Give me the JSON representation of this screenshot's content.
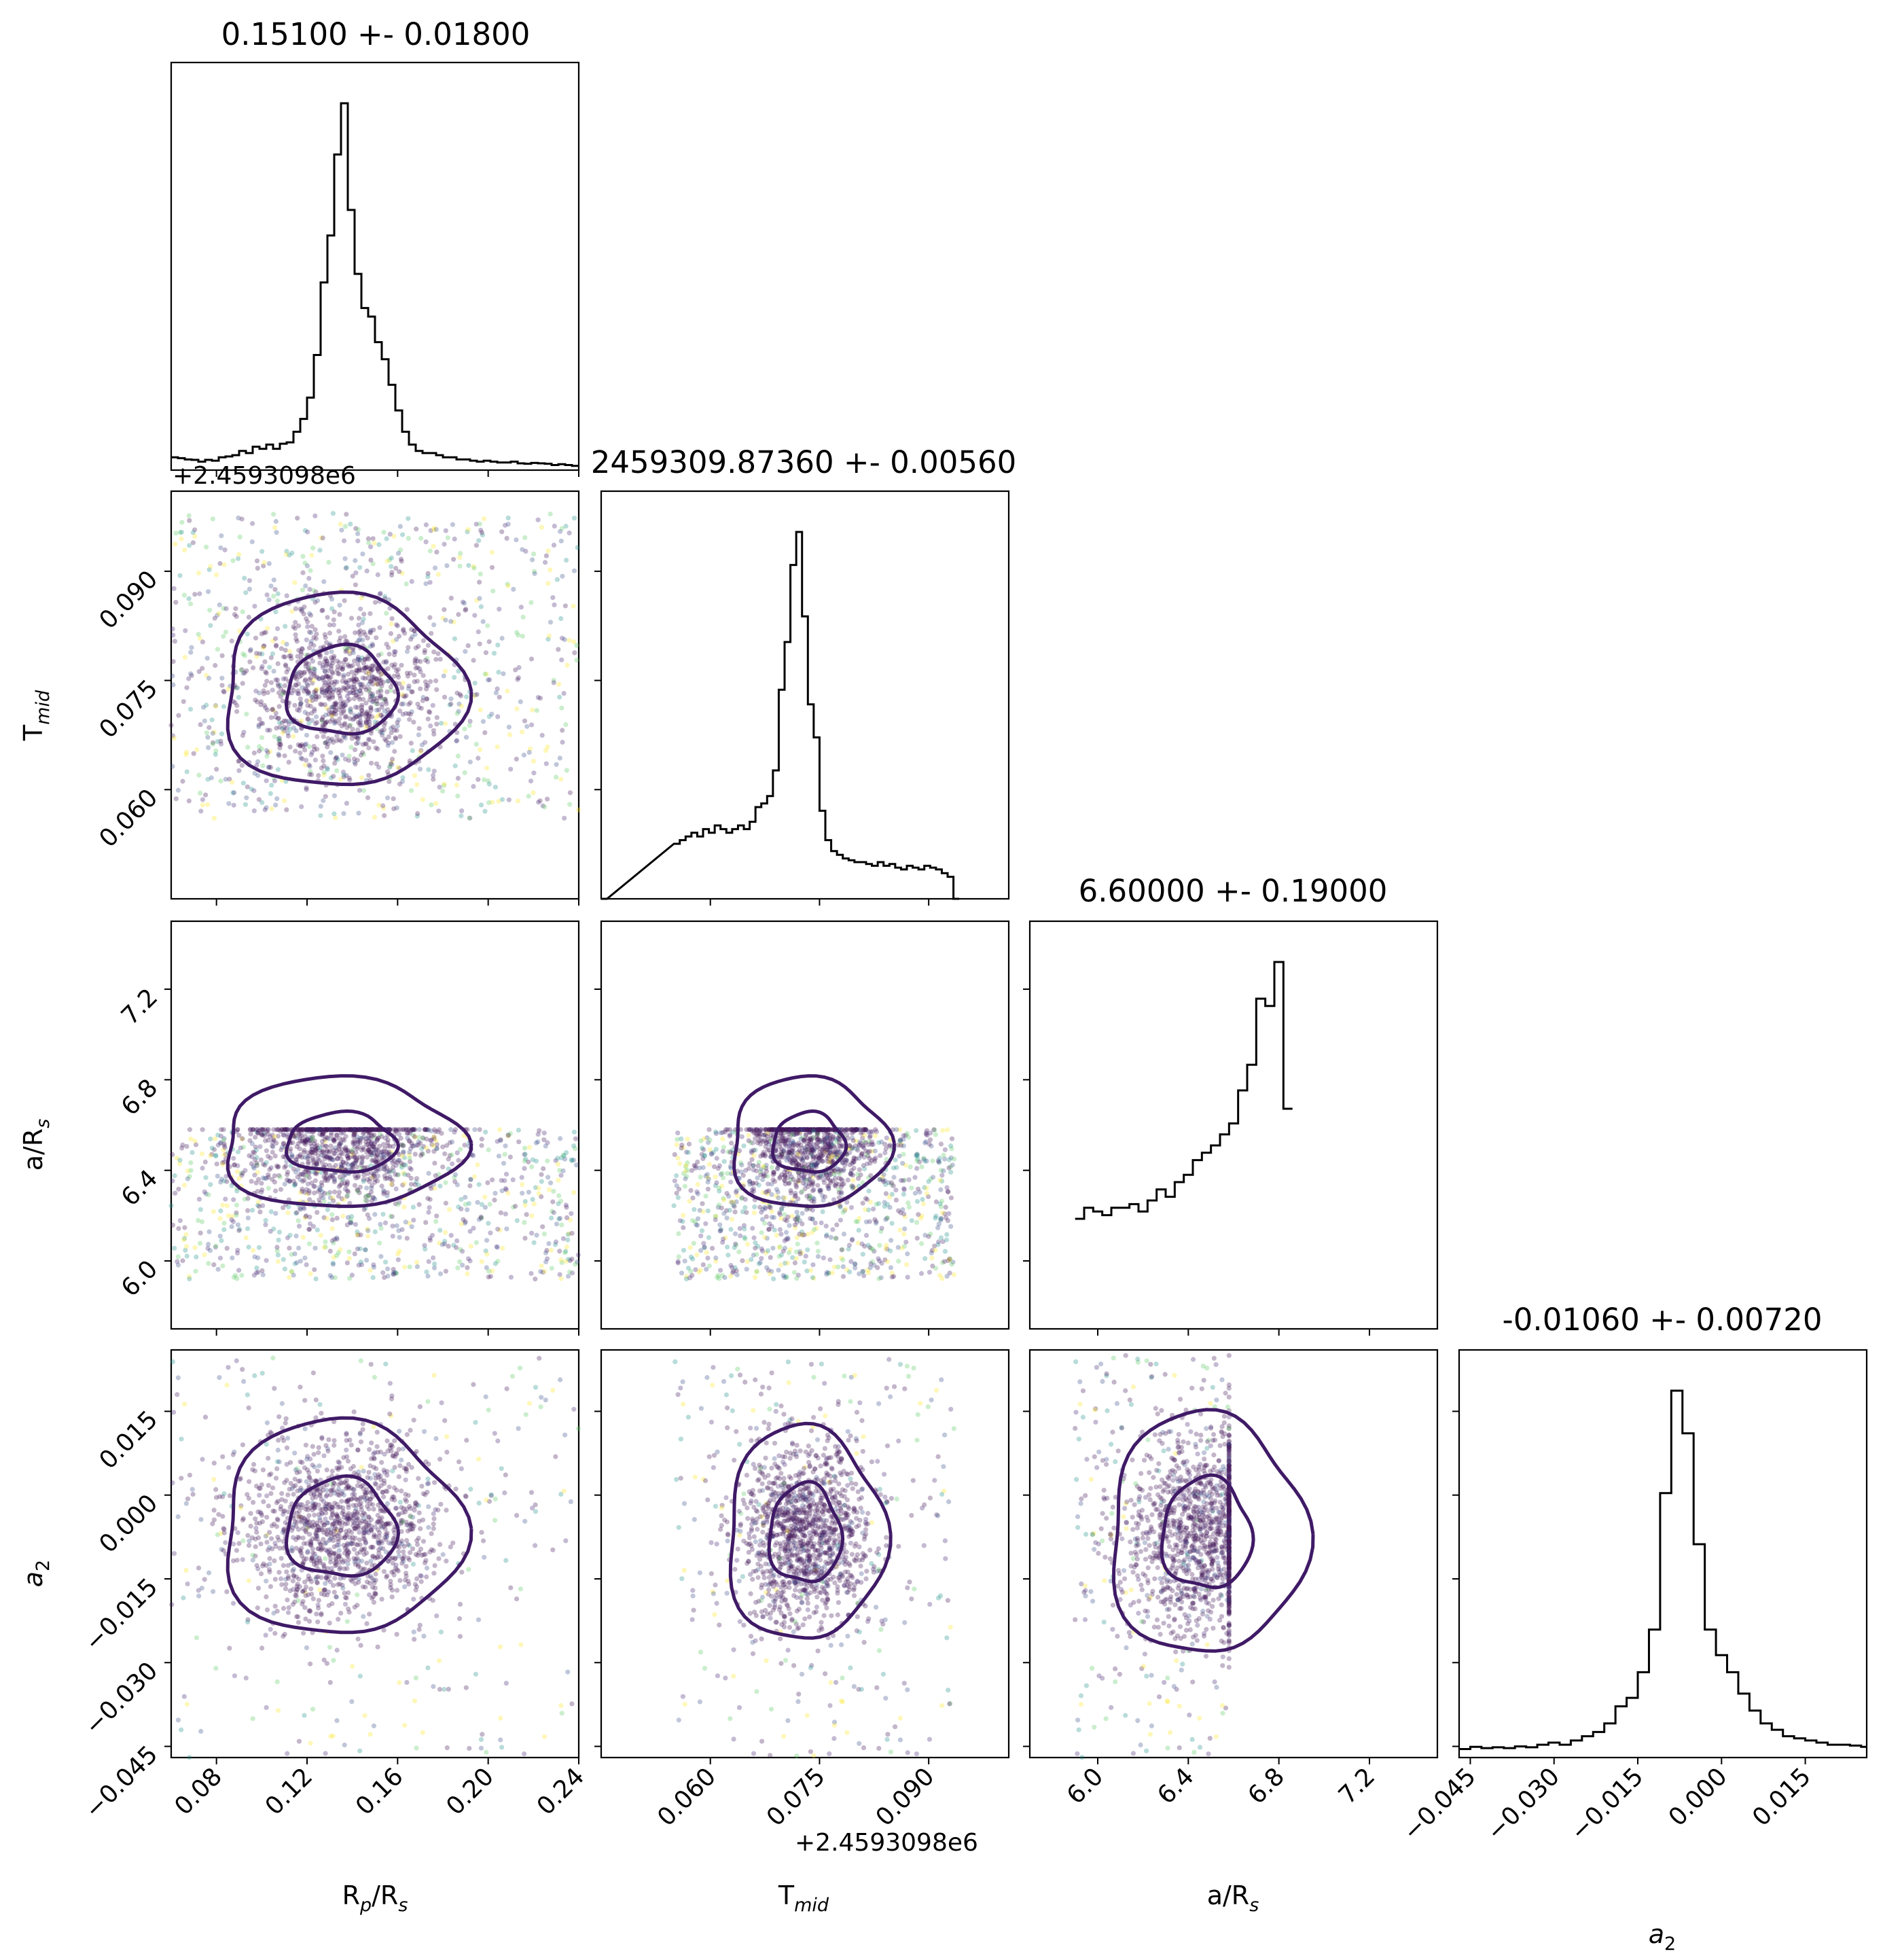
{
  "chart_data": {
    "type": "corner",
    "titles": [
      "0.15100 +- 0.01800",
      "2459309.87360 +- 0.00560",
      "6.60000 +- 0.19000",
      "-0.01060 +- 0.00720"
    ],
    "params": [
      {
        "key": "rp",
        "label": "R",
        "sub": "p",
        "label2": "/R",
        "sub2": "s"
      },
      {
        "key": "tmid",
        "label": "T",
        "sub": "mid",
        "label2": "",
        "sub2": ""
      },
      {
        "key": "ars",
        "label": "a/R",
        "sub": "s",
        "label2": "",
        "sub2": ""
      },
      {
        "key": "a2",
        "label": "a",
        "sub": "2",
        "label2": "",
        "sub2": "",
        "italic": true
      }
    ],
    "offset_labels": {
      "rp_hist": "+2.4593098e6",
      "tmid_x": "+2.4593098e6"
    },
    "ranges": [
      [
        0.06,
        0.24
      ],
      [
        0.045,
        0.101
      ],
      [
        5.7,
        7.5
      ],
      [
        -0.047,
        0.026
      ]
    ],
    "ticks": [
      {
        "values": [
          0.08,
          0.12,
          0.16,
          0.2,
          0.24
        ],
        "labels": [
          "0.08",
          "0.12",
          "0.16",
          "0.20",
          "0.24"
        ]
      },
      {
        "values": [
          0.06,
          0.075,
          0.09
        ],
        "labels": [
          "0.060",
          "0.075",
          "0.090"
        ]
      },
      {
        "values": [
          6.0,
          6.4,
          6.8,
          7.2
        ],
        "labels": [
          "6.0",
          "6.4",
          "6.8",
          "7.2"
        ]
      },
      {
        "values": [
          -0.045,
          -0.03,
          -0.015,
          0.0,
          0.015
        ],
        "labels": [
          "−0.045",
          "−0.030",
          "−0.015",
          "0.000",
          "0.015"
        ]
      }
    ],
    "histograms": [
      {
        "param": "rp",
        "bins": [
          [
            0.06,
            0.03
          ],
          [
            0.063,
            0.028
          ],
          [
            0.066,
            0.025
          ],
          [
            0.069,
            0.024
          ],
          [
            0.072,
            0.02
          ],
          [
            0.075,
            0.024
          ],
          [
            0.078,
            0.022
          ],
          [
            0.081,
            0.03
          ],
          [
            0.084,
            0.032
          ],
          [
            0.087,
            0.035
          ],
          [
            0.09,
            0.045
          ],
          [
            0.093,
            0.04
          ],
          [
            0.096,
            0.055
          ],
          [
            0.099,
            0.05
          ],
          [
            0.102,
            0.06
          ],
          [
            0.105,
            0.05
          ],
          [
            0.108,
            0.062
          ],
          [
            0.111,
            0.065
          ],
          [
            0.114,
            0.09
          ],
          [
            0.117,
            0.12
          ],
          [
            0.12,
            0.17
          ],
          [
            0.123,
            0.27
          ],
          [
            0.126,
            0.44
          ],
          [
            0.129,
            0.55
          ],
          [
            0.132,
            0.74
          ],
          [
            0.135,
            0.86
          ],
          [
            0.138,
            0.61
          ],
          [
            0.141,
            0.46
          ],
          [
            0.144,
            0.38
          ],
          [
            0.147,
            0.36
          ],
          [
            0.15,
            0.3
          ],
          [
            0.153,
            0.26
          ],
          [
            0.156,
            0.2
          ],
          [
            0.159,
            0.14
          ],
          [
            0.162,
            0.09
          ],
          [
            0.165,
            0.06
          ],
          [
            0.168,
            0.045
          ],
          [
            0.171,
            0.04
          ],
          [
            0.174,
            0.04
          ],
          [
            0.177,
            0.035
          ],
          [
            0.18,
            0.03
          ],
          [
            0.183,
            0.03
          ],
          [
            0.186,
            0.025
          ],
          [
            0.189,
            0.025
          ],
          [
            0.192,
            0.022
          ],
          [
            0.195,
            0.02
          ],
          [
            0.198,
            0.022
          ],
          [
            0.201,
            0.02
          ],
          [
            0.204,
            0.018
          ],
          [
            0.207,
            0.018
          ],
          [
            0.21,
            0.02
          ],
          [
            0.213,
            0.016
          ],
          [
            0.216,
            0.015
          ],
          [
            0.219,
            0.017
          ],
          [
            0.222,
            0.016
          ],
          [
            0.225,
            0.015
          ],
          [
            0.228,
            0.012
          ],
          [
            0.231,
            0.014
          ],
          [
            0.234,
            0.012
          ],
          [
            0.237,
            0.01
          ]
        ],
        "width": 0.003
      },
      {
        "param": "tmid",
        "bins": [
          [
            0.045,
            0.0
          ],
          [
            0.055,
            0.15
          ],
          [
            0.0558,
            0.16
          ],
          [
            0.0566,
            0.17
          ],
          [
            0.0574,
            0.18
          ],
          [
            0.0582,
            0.17
          ],
          [
            0.059,
            0.19
          ],
          [
            0.0598,
            0.18
          ],
          [
            0.0606,
            0.2
          ],
          [
            0.0614,
            0.19
          ],
          [
            0.0622,
            0.18
          ],
          [
            0.063,
            0.19
          ],
          [
            0.0638,
            0.2
          ],
          [
            0.0646,
            0.19
          ],
          [
            0.0654,
            0.21
          ],
          [
            0.0662,
            0.25
          ],
          [
            0.067,
            0.26
          ],
          [
            0.0678,
            0.28
          ],
          [
            0.0686,
            0.35
          ],
          [
            0.0694,
            0.57
          ],
          [
            0.0702,
            0.7
          ],
          [
            0.071,
            0.91
          ],
          [
            0.0718,
            1.0
          ],
          [
            0.0726,
            0.77
          ],
          [
            0.0734,
            0.53
          ],
          [
            0.0742,
            0.44
          ],
          [
            0.075,
            0.24
          ],
          [
            0.0758,
            0.16
          ],
          [
            0.0766,
            0.13
          ],
          [
            0.0774,
            0.12
          ],
          [
            0.0782,
            0.11
          ],
          [
            0.079,
            0.105
          ],
          [
            0.0798,
            0.1
          ],
          [
            0.0806,
            0.1
          ],
          [
            0.0814,
            0.095
          ],
          [
            0.0822,
            0.09
          ],
          [
            0.083,
            0.1
          ],
          [
            0.0838,
            0.09
          ],
          [
            0.0846,
            0.095
          ],
          [
            0.0854,
            0.085
          ],
          [
            0.0862,
            0.08
          ],
          [
            0.087,
            0.09
          ],
          [
            0.0878,
            0.085
          ],
          [
            0.0886,
            0.08
          ],
          [
            0.0894,
            0.09
          ],
          [
            0.0902,
            0.085
          ],
          [
            0.091,
            0.08
          ],
          [
            0.0918,
            0.07
          ],
          [
            0.0926,
            0.06
          ],
          [
            0.0934,
            0.0
          ]
        ],
        "width": 0.0008
      },
      {
        "param": "ars",
        "bins": [
          [
            5.9,
            0.3
          ],
          [
            5.94,
            0.33
          ],
          [
            5.98,
            0.32
          ],
          [
            6.02,
            0.31
          ],
          [
            6.06,
            0.33
          ],
          [
            6.1,
            0.33
          ],
          [
            6.14,
            0.34
          ],
          [
            6.18,
            0.32
          ],
          [
            6.22,
            0.35
          ],
          [
            6.26,
            0.38
          ],
          [
            6.3,
            0.36
          ],
          [
            6.34,
            0.4
          ],
          [
            6.38,
            0.42
          ],
          [
            6.42,
            0.46
          ],
          [
            6.46,
            0.48
          ],
          [
            6.5,
            0.5
          ],
          [
            6.54,
            0.53
          ],
          [
            6.58,
            0.56
          ],
          [
            6.62,
            0.65
          ],
          [
            6.66,
            0.72
          ],
          [
            6.7,
            0.9
          ],
          [
            6.74,
            0.88
          ],
          [
            6.78,
            1.0
          ],
          [
            6.82,
            0.6
          ]
        ],
        "width": 0.04
      },
      {
        "param": "a2",
        "bins": [
          [
            -0.047,
            0.02
          ],
          [
            -0.045,
            0.025
          ],
          [
            -0.043,
            0.022
          ],
          [
            -0.041,
            0.024
          ],
          [
            -0.039,
            0.022
          ],
          [
            -0.037,
            0.026
          ],
          [
            -0.035,
            0.024
          ],
          [
            -0.033,
            0.03
          ],
          [
            -0.031,
            0.035
          ],
          [
            -0.029,
            0.03
          ],
          [
            -0.027,
            0.04
          ],
          [
            -0.025,
            0.05
          ],
          [
            -0.023,
            0.06
          ],
          [
            -0.021,
            0.08
          ],
          [
            -0.019,
            0.12
          ],
          [
            -0.017,
            0.14
          ],
          [
            -0.015,
            0.2
          ],
          [
            -0.013,
            0.3
          ],
          [
            -0.011,
            0.62
          ],
          [
            -0.009,
            0.86
          ],
          [
            -0.007,
            0.76
          ],
          [
            -0.005,
            0.5
          ],
          [
            -0.003,
            0.3
          ],
          [
            -0.001,
            0.24
          ],
          [
            0.001,
            0.2
          ],
          [
            0.003,
            0.15
          ],
          [
            0.005,
            0.11
          ],
          [
            0.007,
            0.08
          ],
          [
            0.009,
            0.065
          ],
          [
            0.011,
            0.05
          ],
          [
            0.013,
            0.045
          ],
          [
            0.015,
            0.04
          ],
          [
            0.017,
            0.035
          ],
          [
            0.019,
            0.03
          ],
          [
            0.021,
            0.03
          ],
          [
            0.023,
            0.028
          ],
          [
            0.025,
            0.025
          ]
        ],
        "width": 0.002
      }
    ],
    "grid": false,
    "legend": "none"
  }
}
